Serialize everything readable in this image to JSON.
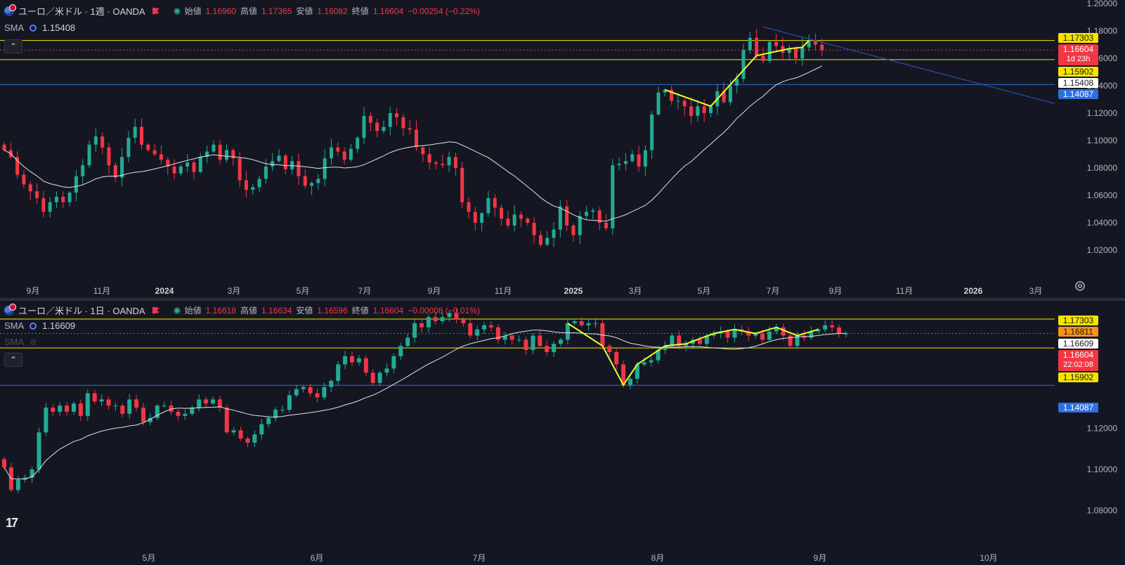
{
  "colors": {
    "background": "#141722",
    "up": "#22ab94",
    "down": "#f23645",
    "sma": "#e0e3eb",
    "support_yellow": "#f5e400",
    "level_blue": "#2f6fe0",
    "trend_blue": "#2f55c8",
    "pattern": "#eaff2c"
  },
  "top": {
    "symbol": "ユーロ／米ドル · 1週 · OANDA",
    "open_label": "始値",
    "open": "1.16960",
    "high_label": "高値",
    "high": "1.17365",
    "low_label": "安値",
    "low": "1.16082",
    "close_label": "終値",
    "close": "1.16604",
    "change": "−0.00254 (−0.22%)",
    "sma_label": "SMA",
    "sma_value": "1.15408",
    "price_ticks": [
      "1.20000",
      "1.18000",
      "1.16000",
      "1.14000",
      "1.12000",
      "1.10000",
      "1.08000",
      "1.06000",
      "1.04000",
      "1.02000"
    ],
    "time_ticks": [
      {
        "text": "9月",
        "bold": false
      },
      {
        "text": "11月",
        "bold": false
      },
      {
        "text": "2024",
        "bold": true
      },
      {
        "text": "3月",
        "bold": false
      },
      {
        "text": "5月",
        "bold": false
      },
      {
        "text": "7月",
        "bold": false
      },
      {
        "text": "9月",
        "bold": false
      },
      {
        "text": "11月",
        "bold": false
      },
      {
        "text": "2025",
        "bold": true
      },
      {
        "text": "3月",
        "bold": false
      },
      {
        "text": "5月",
        "bold": false
      },
      {
        "text": "7月",
        "bold": false
      },
      {
        "text": "9月",
        "bold": false
      },
      {
        "text": "11月",
        "bold": false
      },
      {
        "text": "2026",
        "bold": true
      },
      {
        "text": "3月",
        "bold": false
      }
    ],
    "tags": {
      "t1": "1.17303",
      "t2": "1.16604",
      "t2b": "1d 23h",
      "t3": "1.15902",
      "t4": "1.15408",
      "t5": "1.14087"
    }
  },
  "bottom": {
    "symbol": "ユーロ／米ドル · 1日 · OANDA",
    "open_label": "始値",
    "open": "1.16618",
    "high_label": "高値",
    "high": "1.16634",
    "low_label": "安値",
    "low": "1.16596",
    "close_label": "終値",
    "close": "1.16604",
    "change": "−0.00008 (−0.01%)",
    "sma_label": "SMA",
    "sma_value": "1.16609",
    "sma2_label": "SMA",
    "price_ticks": [
      "1.12000",
      "1.10000",
      "1.08000"
    ],
    "time_ticks": [
      "5月",
      "6月",
      "7月",
      "8月",
      "9月",
      "10月"
    ],
    "tags": {
      "t1": "1.17303",
      "t2": "1.16811",
      "t3": "1.16609",
      "t4": "1.16604",
      "t4b": "22:02:08",
      "t5": "1.15902",
      "t6": "1.14087"
    }
  },
  "chart_data": [
    {
      "type": "candlestick",
      "title": "ユーロ／米ドル · 1週 · OANDA",
      "ylim": [
        1.0,
        1.2
      ],
      "horizontal_levels": [
        1.17303,
        1.15902,
        1.14087
      ],
      "current_price": 1.16604,
      "sma_last": 1.15408,
      "x_ticks": [
        "9月",
        "11月",
        "2024",
        "3月",
        "5月",
        "7月",
        "9月",
        "11月",
        "2025",
        "3月",
        "5月",
        "7月",
        "9月",
        "11月",
        "2026",
        "3月"
      ],
      "close": [
        1.093,
        1.088,
        1.075,
        1.068,
        1.063,
        1.058,
        1.048,
        1.055,
        1.059,
        1.055,
        1.062,
        1.074,
        1.082,
        1.097,
        1.103,
        1.095,
        1.082,
        1.073,
        1.088,
        1.102,
        1.11,
        1.097,
        1.093,
        1.09,
        1.086,
        1.081,
        1.076,
        1.081,
        1.084,
        1.077,
        1.088,
        1.092,
        1.097,
        1.086,
        1.093,
        1.087,
        1.071,
        1.064,
        1.066,
        1.072,
        1.081,
        1.085,
        1.089,
        1.079,
        1.085,
        1.074,
        1.067,
        1.069,
        1.072,
        1.087,
        1.095,
        1.092,
        1.086,
        1.094,
        1.102,
        1.118,
        1.113,
        1.107,
        1.11,
        1.12,
        1.117,
        1.109,
        1.108,
        1.095,
        1.09,
        1.084,
        1.083,
        1.082,
        1.088,
        1.08,
        1.055,
        1.048,
        1.04,
        1.047,
        1.058,
        1.051,
        1.043,
        1.038,
        1.046,
        1.043,
        1.04,
        1.031,
        1.024,
        1.029,
        1.035,
        1.052,
        1.038,
        1.031,
        1.045,
        1.048,
        1.049,
        1.04,
        1.036,
        1.082,
        1.083,
        1.085,
        1.09,
        1.081,
        1.093,
        1.119,
        1.135,
        1.137,
        1.129,
        1.129,
        1.125,
        1.118,
        1.125,
        1.12,
        1.125,
        1.136,
        1.128,
        1.14,
        1.145,
        1.166,
        1.175,
        1.162,
        1.158,
        1.172,
        1.169,
        1.164,
        1.167,
        1.16,
        1.168,
        1.173,
        1.17,
        1.166
      ]
    },
    {
      "type": "candlestick",
      "title": "ユーロ／米ドル · 1日 · OANDA",
      "horizontal_levels": [
        1.17303,
        1.15902,
        1.14087
      ],
      "current_price": 1.16604,
      "sma_last": 1.16609,
      "x_ticks": [
        "5月",
        "6月",
        "7月",
        "8月",
        "9月",
        "10月"
      ],
      "close": [
        1.101,
        1.09,
        1.095,
        1.096,
        1.1,
        1.118,
        1.13,
        1.128,
        1.131,
        1.128,
        1.132,
        1.126,
        1.137,
        1.133,
        1.134,
        1.131,
        1.131,
        1.127,
        1.134,
        1.13,
        1.123,
        1.125,
        1.131,
        1.131,
        1.128,
        1.126,
        1.127,
        1.13,
        1.134,
        1.132,
        1.134,
        1.13,
        1.118,
        1.119,
        1.115,
        1.113,
        1.117,
        1.122,
        1.125,
        1.129,
        1.129,
        1.136,
        1.139,
        1.14,
        1.137,
        1.135,
        1.14,
        1.143,
        1.151,
        1.155,
        1.152,
        1.154,
        1.147,
        1.142,
        1.147,
        1.149,
        1.155,
        1.16,
        1.164,
        1.171,
        1.169,
        1.174,
        1.172,
        1.174,
        1.176,
        1.173,
        1.171,
        1.165,
        1.168,
        1.17,
        1.169,
        1.163,
        1.165,
        1.163,
        1.163,
        1.158,
        1.165,
        1.16,
        1.157,
        1.161,
        1.163,
        1.171,
        1.172,
        1.17,
        1.171,
        1.171,
        1.16,
        1.157,
        1.151,
        1.141,
        1.144,
        1.151,
        1.152,
        1.153,
        1.158,
        1.16,
        1.165,
        1.16,
        1.161,
        1.163,
        1.161,
        1.165,
        1.166,
        1.167,
        1.164,
        1.168,
        1.167,
        1.165,
        1.166,
        1.163,
        1.167,
        1.169,
        1.165,
        1.16,
        1.165,
        1.164,
        1.167,
        1.168,
        1.17,
        1.169,
        1.166,
        1.166
      ]
    }
  ]
}
